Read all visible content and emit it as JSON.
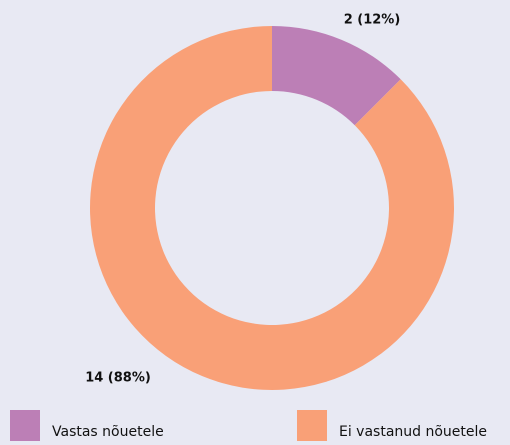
{
  "chart_data": {
    "type": "pie",
    "categories": [
      "Vastas nõuetele",
      "Ei vastanud nõuetele"
    ],
    "values": [
      2,
      14
    ],
    "value_labels": [
      "2 (12%)",
      "14 (88%)"
    ],
    "colors": [
      "#bc7fb6",
      "#f9a077"
    ],
    "donut": true
  }
}
